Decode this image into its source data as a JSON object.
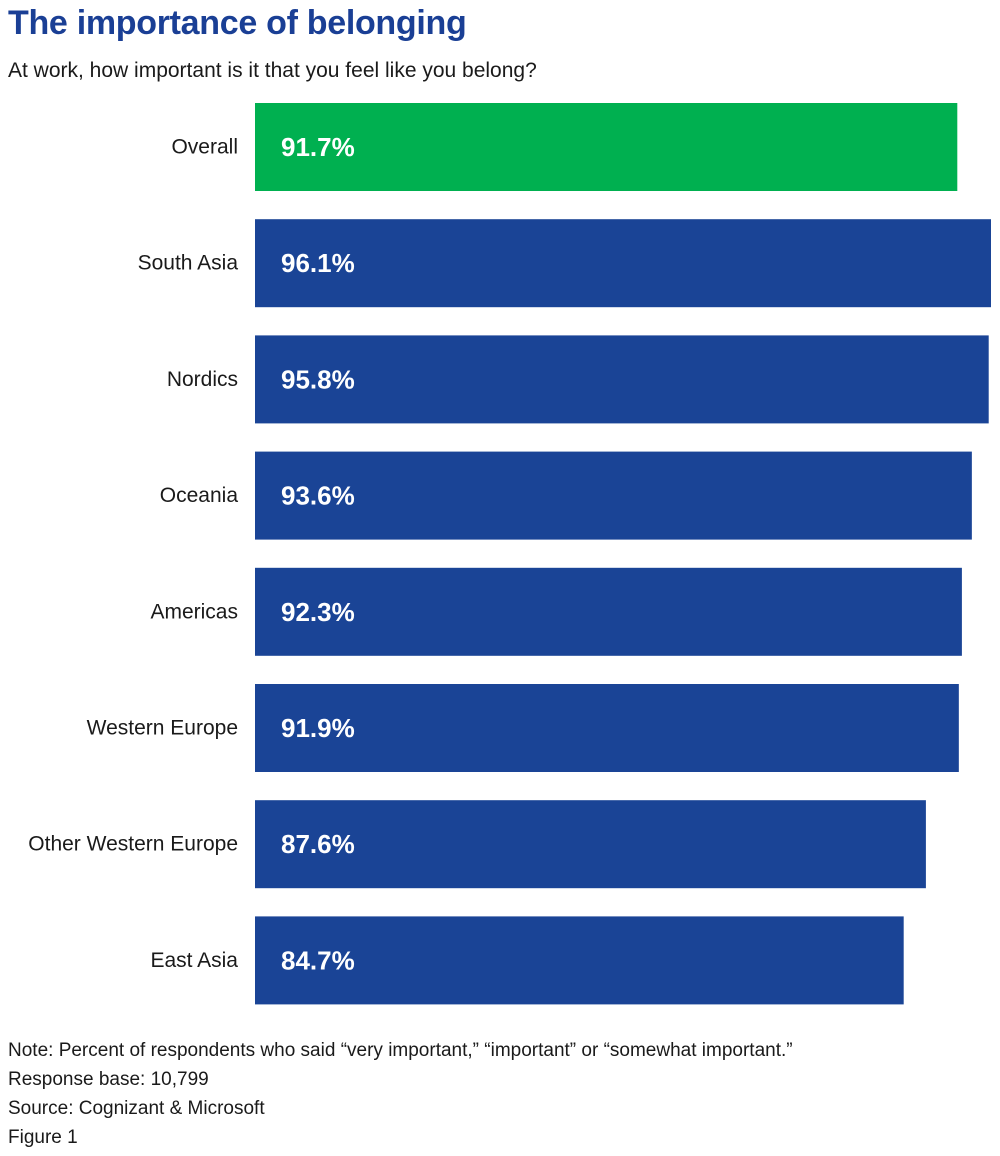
{
  "chart_data": {
    "type": "bar",
    "orientation": "horizontal",
    "title": "The importance of belonging",
    "subtitle": "At work, how important is it that you feel like you belong?",
    "categories": [
      "Overall",
      "South Asia",
      "Nordics",
      "Oceania",
      "Americas",
      "Western Europe",
      "Other Western Europe",
      "East Asia"
    ],
    "values": [
      91.7,
      96.1,
      95.8,
      93.6,
      92.3,
      91.9,
      87.6,
      84.7
    ],
    "value_labels": [
      "91.7%",
      "96.1%",
      "95.8%",
      "93.6%",
      "92.3%",
      "91.9%",
      "87.6%",
      "84.7%"
    ],
    "unit": "%",
    "xlim": [
      0,
      96.1
    ],
    "grid": false,
    "legend": "none",
    "colors": {
      "highlight": "#00b050",
      "default": "#1a4496",
      "label_text": "#ffffff"
    },
    "highlight_category": "Overall"
  },
  "footer": {
    "note": "Note: Percent of respondents who said “very important,” “important” or “somewhat important.”",
    "response_base": "Response base: 10,799",
    "source": "Source: Cognizant & Microsoft",
    "figure": "Figure 1"
  }
}
